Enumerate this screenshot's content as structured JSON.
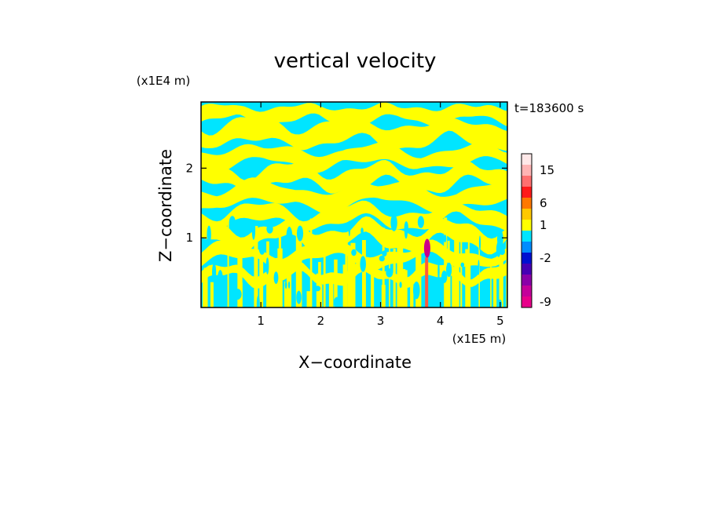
{
  "chart_data": {
    "type": "heatmap",
    "title": "vertical velocity",
    "xlabel": "X−coordinate",
    "ylabel": "Z−coordinate",
    "x_scale_label": "(x1E5 m)",
    "y_scale_label": "(x1E4 m)",
    "time_label": "t=183600 s",
    "xlim": [
      0,
      5.12
    ],
    "ylim": [
      0,
      2.95
    ],
    "x_ticks": [
      1,
      2,
      3,
      4,
      5
    ],
    "x_tick_labels": [
      "1",
      "2",
      "3",
      "4",
      "5"
    ],
    "y_ticks": [
      1,
      2
    ],
    "y_tick_labels": [
      "1",
      "2"
    ],
    "field_colors": {
      "updraft": "#ffff00",
      "downdraft": "#00e5ff",
      "strong_down": "#cc0088",
      "strong_up": "#ff5a3c"
    },
    "features": [
      {
        "name": "strong-downdraft-core",
        "x": 3.78,
        "z": 0.85,
        "value": -9
      },
      {
        "name": "narrow-updraft-column",
        "x": 3.77,
        "z": 0.45,
        "value": 6
      }
    ],
    "colorbar": {
      "levels_bottom_to_top": [
        {
          "color": "#e8008a",
          "label": "-9"
        },
        {
          "color": "#c4009a",
          "label": ""
        },
        {
          "color": "#8a00a8",
          "label": ""
        },
        {
          "color": "#4600b4",
          "label": ""
        },
        {
          "color": "#0010d0",
          "label": "-2"
        },
        {
          "color": "#008cff",
          "label": ""
        },
        {
          "color": "#00e5ff",
          "label": ""
        },
        {
          "color": "#ffff00",
          "label": "1"
        },
        {
          "color": "#ffc800",
          "label": ""
        },
        {
          "color": "#ff7800",
          "label": "6"
        },
        {
          "color": "#ff1a1a",
          "label": ""
        },
        {
          "color": "#ff7070",
          "label": ""
        },
        {
          "color": "#ffb4b4",
          "label": "15"
        },
        {
          "color": "#ffe8e8",
          "label": ""
        }
      ]
    }
  }
}
